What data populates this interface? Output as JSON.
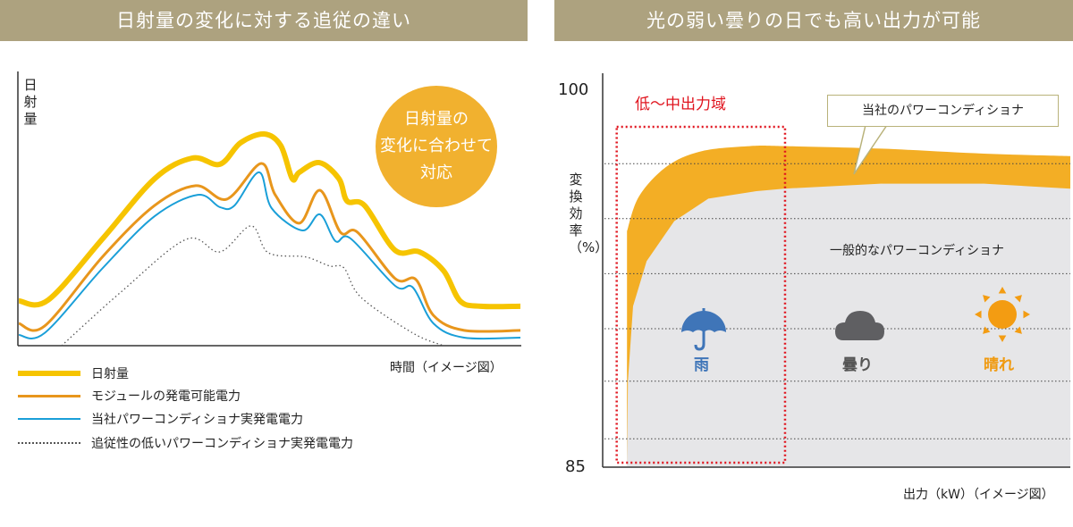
{
  "left_panel": {
    "title": "日射量の変化に対する追従の違い",
    "bubble": [
      "日射量の",
      "変化に合わせて",
      "対応"
    ]
  },
  "right_panel": {
    "title": "光の弱い曇りの日でも高い出力が可能",
    "region_label": "低〜中出力域",
    "callout": "当社のパワーコンディショナ",
    "general_label": "一般的なパワーコンディショナ",
    "weather": [
      {
        "icon": "umbrella-icon",
        "label": "雨",
        "color": "#3f75b8"
      },
      {
        "icon": "cloud-icon",
        "label": "曇り",
        "color": "#555555"
      },
      {
        "icon": "sun-icon",
        "label": "晴れ",
        "color": "#f09a10"
      }
    ]
  },
  "colors": {
    "yellow": "#f6c400",
    "orange": "#e8961c",
    "blue": "#1a9fd8",
    "dotted": "#555555",
    "band": "#f3ae25",
    "gray": "#e6e6e8",
    "red": "#e0141e"
  },
  "chart_data": [
    {
      "type": "line",
      "title": "日射量の変化に対する追従の違い",
      "xlabel": "時間（イメージ図）",
      "ylabel": "日射量",
      "xlim": [
        0,
        100
      ],
      "ylim": [
        0,
        100
      ],
      "series": [
        {
          "name": "日射量",
          "x": [
            0.2,
            6,
            16.9,
            27.2,
            34.7,
            40.2,
            44.3,
            49,
            52.3,
            54.6,
            56,
            60,
            63.9,
            65.5,
            69,
            75,
            79.9,
            84.7,
            88,
            92.1,
            100
          ],
          "y": [
            16.7,
            17,
            40,
            62.3,
            70,
            67.7,
            75.7,
            79,
            74.7,
            62.3,
            64.7,
            68.3,
            62.3,
            54,
            52.3,
            35.7,
            35,
            28,
            16.7,
            14.7,
            14.7
          ]
        },
        {
          "name": "モジュールの発電可能電力",
          "x": [
            0.2,
            5.3,
            16.9,
            27.2,
            35.4,
            41.6,
            48.4,
            51.2,
            56,
            60.1,
            64.2,
            67.6,
            75.1,
            79.2,
            82.7,
            88.8,
            100
          ],
          "y": [
            8.3,
            7.3,
            33.3,
            52.3,
            59.7,
            54.7,
            68,
            56.3,
            45.7,
            58,
            42.3,
            42.3,
            25,
            24.7,
            11.3,
            5.7,
            5.7
          ]
        },
        {
          "name": "当社パワーコンディショナ実発電電力",
          "x": [
            0.2,
            5.3,
            16.9,
            27.2,
            35.8,
            40.2,
            43.1,
            48,
            50.5,
            56.6,
            60.1,
            63.2,
            66.2,
            75.1,
            78.6,
            82.7,
            88.8,
            100
          ],
          "y": [
            4,
            4.7,
            29,
            48.3,
            56.3,
            51.7,
            52.3,
            64.7,
            51.3,
            43,
            49,
            39,
            40,
            22.3,
            21.7,
            8.3,
            3,
            3
          ]
        },
        {
          "name": "追従性の低いパワーコンディショナ実発電電力",
          "x": [
            8.7,
            20.5,
            33.5,
            40.2,
            46.4,
            49.8,
            56.6,
            58.7,
            62.1,
            64.9,
            68.3,
            78.6,
            84.7
          ],
          "y": [
            0,
            20,
            39.7,
            35,
            44.7,
            34.7,
            33.3,
            32.3,
            29.7,
            29,
            18,
            4.7,
            0
          ]
        }
      ]
    },
    {
      "type": "area",
      "title": "光の弱い曇りの日でも高い出力が可能",
      "xlabel": "出力（kW）（イメージ図）",
      "ylabel": "変換効率（%）",
      "xlim": [
        0,
        100
      ],
      "ylim": [
        85,
        100
      ],
      "yticks": [
        "100",
        "85"
      ],
      "gridlines": [
        97.1,
        94.9,
        92.7,
        90.5,
        88.4,
        86.1
      ],
      "highlight_region": [
        3,
        39
      ],
      "series": [
        {
          "name": "当社のパワーコンディショナ",
          "x": [
            5.2,
            7.8,
            13.8,
            21.2,
            31.4,
            38.8,
            59.5,
            81.5,
            100
          ],
          "y": [
            94.4,
            95.8,
            97,
            97.6,
            97.8,
            97.8,
            97.7,
            97.5,
            97.4
          ]
        },
        {
          "name": "一般的なパワーコンディショナ",
          "x": [
            5.2,
            5.4,
            6.5,
            9.4,
            15.3,
            22.6,
            32.9,
            38.8,
            59.5,
            81.5,
            100
          ],
          "y": [
            85,
            88.4,
            91.4,
            93.2,
            94.8,
            95.7,
            96,
            96.1,
            96.3,
            96.3,
            96.1
          ]
        }
      ]
    }
  ]
}
